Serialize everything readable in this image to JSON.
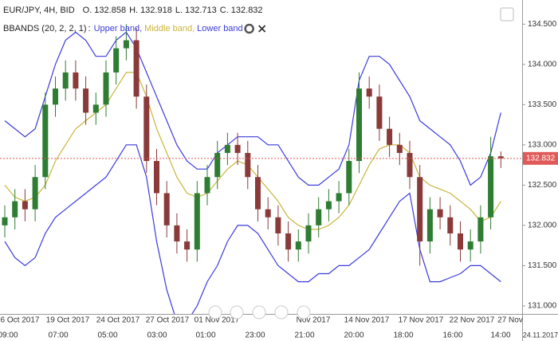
{
  "chart_data": {
    "type": "candlestick",
    "symbol": "EUR/JPY, 4H, BID",
    "ohlc_labels": [
      {
        "label": "O.",
        "value": "132.858"
      },
      {
        "label": "H.",
        "value": "132.918"
      },
      {
        "label": "L.",
        "value": "132.713"
      },
      {
        "label": "C.",
        "value": "132.832"
      }
    ],
    "indicator": "BBANDS (20, 2, 2, 1)",
    "indicator_separator": ":",
    "name_separator": ",",
    "open": [
      132.0,
      132.1,
      132.3,
      132.2,
      132.6,
      133.5,
      133.7,
      133.9,
      133.7,
      133.4,
      133.5,
      133.9,
      134.2,
      134.3,
      133.6,
      132.8,
      132.4,
      132.0,
      131.8,
      131.7,
      132.4,
      132.6,
      132.9,
      133.0,
      132.9,
      132.6,
      132.2,
      132.1,
      131.9,
      131.7,
      131.8,
      132.0,
      132.2,
      132.3,
      132.4,
      132.8,
      133.7,
      133.6,
      133.2,
      133.0,
      132.9,
      132.6,
      131.8,
      132.2,
      132.1,
      131.9,
      131.7,
      131.8,
      132.1,
      132.858
    ],
    "high": [
      132.25,
      132.45,
      132.45,
      132.75,
      133.65,
      133.85,
      134.05,
      134.05,
      133.85,
      133.65,
      134.05,
      134.35,
      134.5,
      134.45,
      133.75,
      132.95,
      132.55,
      132.15,
      131.95,
      132.55,
      132.75,
      133.05,
      133.15,
      133.15,
      133.05,
      132.75,
      132.35,
      132.25,
      132.05,
      131.95,
      132.15,
      132.35,
      132.45,
      132.55,
      132.95,
      133.9,
      133.85,
      133.75,
      133.35,
      133.15,
      133.05,
      132.75,
      132.35,
      132.35,
      132.25,
      132.05,
      131.95,
      132.25,
      133.1,
      132.918
    ],
    "low": [
      131.85,
      131.95,
      132.05,
      132.05,
      132.45,
      133.35,
      133.55,
      133.55,
      133.25,
      133.25,
      133.35,
      133.75,
      134.05,
      133.45,
      132.65,
      132.25,
      131.85,
      131.65,
      131.55,
      131.55,
      132.25,
      132.45,
      132.75,
      132.75,
      132.45,
      132.05,
      131.95,
      131.75,
      131.55,
      131.55,
      131.65,
      131.85,
      132.05,
      132.15,
      132.25,
      132.65,
      133.45,
      133.05,
      132.85,
      132.75,
      132.45,
      131.5,
      131.65,
      131.95,
      131.75,
      131.55,
      131.55,
      131.65,
      131.95,
      132.713
    ],
    "close": [
      132.1,
      132.3,
      132.2,
      132.6,
      133.5,
      133.7,
      133.9,
      133.7,
      133.4,
      133.5,
      133.9,
      134.2,
      134.3,
      133.6,
      132.8,
      132.4,
      132.0,
      131.8,
      131.7,
      132.4,
      132.6,
      132.9,
      133.0,
      132.9,
      132.6,
      132.2,
      132.1,
      131.9,
      131.7,
      131.8,
      132.0,
      132.2,
      132.3,
      132.4,
      132.8,
      133.7,
      133.6,
      133.2,
      133.0,
      132.9,
      132.6,
      131.8,
      132.2,
      132.1,
      131.9,
      131.7,
      131.8,
      132.1,
      132.858,
      132.832
    ],
    "up_color": "#2e7d32",
    "down_color": "#8b3a3a",
    "series": [
      {
        "name": "Upper band",
        "color": "#3b3bdc",
        "values": [
          133.3,
          133.2,
          133.1,
          133.2,
          133.6,
          134.0,
          134.3,
          134.4,
          134.3,
          134.1,
          134.1,
          134.3,
          134.4,
          134.2,
          133.9,
          133.6,
          133.3,
          133.0,
          132.8,
          132.7,
          132.7,
          132.9,
          133.0,
          133.1,
          133.1,
          133.1,
          133.0,
          133.0,
          132.8,
          132.6,
          132.5,
          132.5,
          132.6,
          132.7,
          133.0,
          133.8,
          134.1,
          134.1,
          134.0,
          133.8,
          133.6,
          133.3,
          133.2,
          133.1,
          133.0,
          132.8,
          132.5,
          132.6,
          132.9,
          133.4
        ]
      },
      {
        "name": "Middle band",
        "color": "#c9b53a",
        "values": [
          132.5,
          132.35,
          132.3,
          132.35,
          132.5,
          132.8,
          133.0,
          133.2,
          133.3,
          133.4,
          133.5,
          133.7,
          133.9,
          133.9,
          133.6,
          133.2,
          132.9,
          132.6,
          132.4,
          132.35,
          132.4,
          132.55,
          132.7,
          132.8,
          132.75,
          132.6,
          132.45,
          132.3,
          132.1,
          132.0,
          131.95,
          131.95,
          132.0,
          132.1,
          132.25,
          132.5,
          132.75,
          132.95,
          133.0,
          133.0,
          132.9,
          132.6,
          132.5,
          132.45,
          132.4,
          132.3,
          132.2,
          132.05,
          132.1,
          132.3
        ]
      },
      {
        "name": "Lower band",
        "color": "#3b3bdc",
        "values": [
          131.8,
          131.6,
          131.5,
          131.6,
          131.9,
          132.1,
          132.2,
          132.3,
          132.4,
          132.5,
          132.6,
          132.8,
          133.0,
          133.0,
          132.6,
          131.8,
          131.2,
          130.8,
          130.8,
          131.0,
          131.3,
          131.5,
          131.8,
          132.0,
          132.0,
          131.9,
          131.7,
          131.5,
          131.4,
          131.3,
          131.3,
          131.4,
          131.4,
          131.5,
          131.5,
          131.6,
          131.7,
          131.9,
          132.1,
          132.3,
          132.4,
          131.7,
          131.3,
          131.3,
          131.35,
          131.4,
          131.5,
          131.5,
          131.4,
          131.3
        ]
      }
    ],
    "last_price": {
      "value": 132.832,
      "label": "132.832"
    },
    "last_price_color": "#e05a5a",
    "ylim": [
      130.9,
      134.8
    ],
    "yticks": [
      {
        "value": 131,
        "label": "131.000"
      },
      {
        "value": 131.5,
        "label": "131.500"
      },
      {
        "value": 132,
        "label": "132.000"
      },
      {
        "value": 132.5,
        "label": "132.500"
      },
      {
        "value": 133,
        "label": "133.000"
      },
      {
        "value": 133.5,
        "label": "133.500"
      },
      {
        "value": 134,
        "label": "134.000"
      },
      {
        "value": 134.5,
        "label": "134.500"
      }
    ],
    "date_labels": [
      "6 Oct 2017",
      "19 Oct 2017",
      "24 Oct 2017",
      "27 Oct 2017",
      "01 Nov 2017",
      "Nov 2017",
      "14 Nov 2017",
      "17 Nov 2017",
      "22 Nov 2017",
      "27 Nov"
    ],
    "time_labels": [
      "09:00",
      "07:00",
      "05:00",
      "03:00",
      "01:00",
      "23:00",
      "21:00",
      "20:00",
      "18:00",
      "16:00",
      "14:00"
    ],
    "current_date": "24.11.2017"
  }
}
